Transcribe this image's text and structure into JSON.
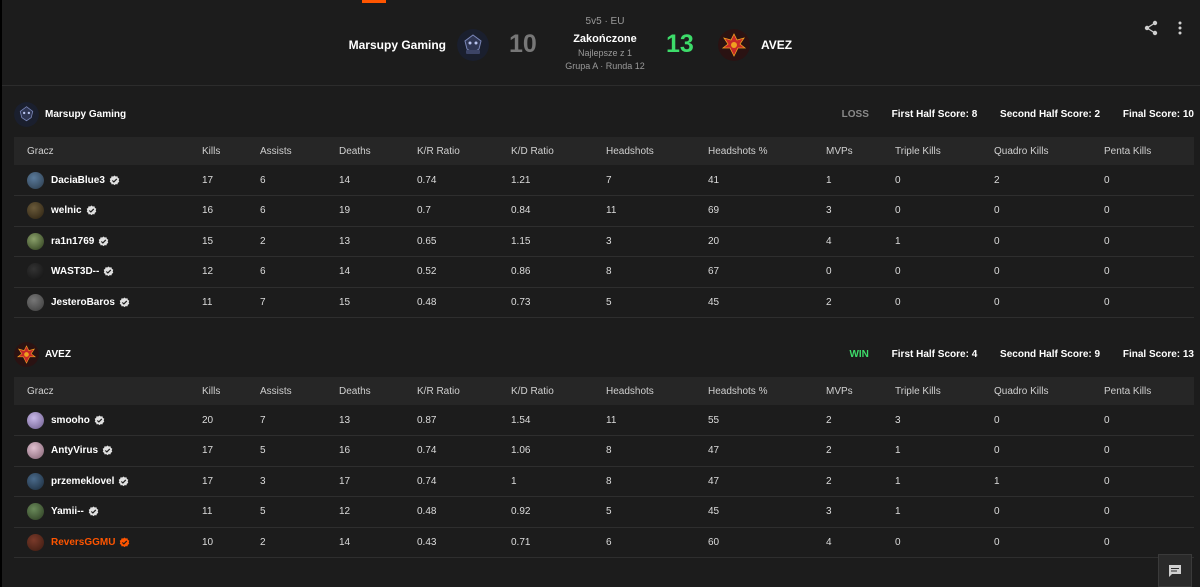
{
  "header": {
    "team_left": "Marsupy Gaming",
    "team_right": "AVEZ",
    "score_left": "10",
    "score_right": "13",
    "format": "5v5 · EU",
    "status": "Zakończone",
    "best_of": "Najlepsze z 1",
    "round": "Grupa A · Runda 12",
    "share_icon": "share-icon",
    "more_icon": "more-vertical-icon"
  },
  "columns": [
    "Gracz",
    "Kills",
    "Assists",
    "Deaths",
    "K/R Ratio",
    "K/D Ratio",
    "Headshots",
    "Headshots %",
    "MVPs",
    "Triple Kills",
    "Quadro Kills",
    "Penta Kills"
  ],
  "teams": [
    {
      "name": "Marsupy Gaming",
      "result": "LOSS",
      "first_half": "First Half Score: 8",
      "second_half": "Second Half Score: 2",
      "final": "Final Score: 10",
      "players": [
        {
          "name": "DaciaBlue3",
          "stats": [
            "17",
            "6",
            "14",
            "0.74",
            "1.21",
            "7",
            "41",
            "1",
            "0",
            "2",
            "0"
          ]
        },
        {
          "name": "welnic",
          "stats": [
            "16",
            "6",
            "19",
            "0.7",
            "0.84",
            "11",
            "69",
            "3",
            "0",
            "0",
            "0"
          ]
        },
        {
          "name": "ra1n1769",
          "stats": [
            "15",
            "2",
            "13",
            "0.65",
            "1.15",
            "3",
            "20",
            "4",
            "1",
            "0",
            "0"
          ]
        },
        {
          "name": "WAST3D--",
          "stats": [
            "12",
            "6",
            "14",
            "0.52",
            "0.86",
            "8",
            "67",
            "0",
            "0",
            "0",
            "0"
          ]
        },
        {
          "name": "JesteroBaros",
          "stats": [
            "11",
            "7",
            "15",
            "0.48",
            "0.73",
            "5",
            "45",
            "2",
            "0",
            "0",
            "0"
          ]
        }
      ]
    },
    {
      "name": "AVEZ",
      "result": "WIN",
      "first_half": "First Half Score: 4",
      "second_half": "Second Half Score: 9",
      "final": "Final Score: 13",
      "players": [
        {
          "name": "smooho",
          "stats": [
            "20",
            "7",
            "13",
            "0.87",
            "1.54",
            "11",
            "55",
            "2",
            "3",
            "0",
            "0"
          ]
        },
        {
          "name": "AntyVirus",
          "stats": [
            "17",
            "5",
            "16",
            "0.74",
            "1.06",
            "8",
            "47",
            "2",
            "1",
            "0",
            "0"
          ]
        },
        {
          "name": "przemeklovel",
          "stats": [
            "17",
            "3",
            "17",
            "0.74",
            "1",
            "8",
            "47",
            "2",
            "1",
            "1",
            "0"
          ]
        },
        {
          "name": "Yamii--",
          "stats": [
            "11",
            "5",
            "12",
            "0.48",
            "0.92",
            "5",
            "45",
            "3",
            "1",
            "0",
            "0"
          ]
        },
        {
          "name": "ReversGGMU",
          "stats": [
            "10",
            "2",
            "14",
            "0.43",
            "0.71",
            "6",
            "60",
            "4",
            "0",
            "0",
            "0"
          ],
          "highlight": true
        }
      ]
    }
  ],
  "colors": {
    "accent": "#ff5500",
    "win": "#3ddc6a",
    "loss": "#8a8a8a",
    "background": "#1c1c1c"
  },
  "chat_icon": "chat-icon"
}
